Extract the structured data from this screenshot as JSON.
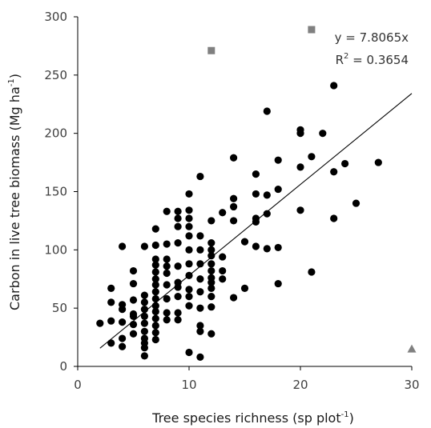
{
  "chart_data": {
    "type": "scatter",
    "xlabel": "Tree species richness (sp plot",
    "xlabel_sup": "-1",
    "xlabel_close": ")",
    "ylabel": "Carbon in live tree biomass (Mg ha",
    "ylabel_sup": "-1",
    "ylabel_close": ")",
    "xlim": [
      0,
      30
    ],
    "ylim": [
      0,
      300
    ],
    "xticks": [
      "0",
      "10",
      "20",
      "30"
    ],
    "yticks": [
      "0",
      "50",
      "100",
      "150",
      "200",
      "250",
      "300"
    ],
    "grid": false,
    "legend": "none",
    "annotations": {
      "equation": "y = 7.8065x",
      "r2_prefix": "R",
      "r2_sup": "2",
      "r2_value": " = 0.3654"
    },
    "colors": {
      "points": "#000000",
      "outliers": "#808080",
      "trendline": "#000000",
      "axis": "#000000"
    },
    "trendline": {
      "slope": 7.8065,
      "x_start": 2,
      "x_end": 30
    },
    "series": [
      {
        "marker": "circle",
        "points": [
          [
            2,
            37
          ],
          [
            3,
            20
          ],
          [
            3,
            39
          ],
          [
            3,
            55
          ],
          [
            3,
            67
          ],
          [
            4,
            17
          ],
          [
            4,
            24
          ],
          [
            4,
            38
          ],
          [
            4,
            49
          ],
          [
            4,
            53
          ],
          [
            4,
            103
          ],
          [
            5,
            28
          ],
          [
            5,
            36
          ],
          [
            5,
            43
          ],
          [
            5,
            45
          ],
          [
            5,
            57
          ],
          [
            5,
            71
          ],
          [
            5,
            82
          ],
          [
            6,
            9
          ],
          [
            6,
            16
          ],
          [
            6,
            20
          ],
          [
            6,
            24
          ],
          [
            6,
            30
          ],
          [
            6,
            37
          ],
          [
            6,
            43
          ],
          [
            6,
            49
          ],
          [
            6,
            55
          ],
          [
            6,
            61
          ],
          [
            6,
            103
          ],
          [
            7,
            23
          ],
          [
            7,
            29
          ],
          [
            7,
            35
          ],
          [
            7,
            41
          ],
          [
            7,
            47
          ],
          [
            7,
            52
          ],
          [
            7,
            58
          ],
          [
            7,
            64
          ],
          [
            7,
            70
          ],
          [
            7,
            75
          ],
          [
            7,
            81
          ],
          [
            7,
            87
          ],
          [
            7,
            92
          ],
          [
            7,
            104
          ],
          [
            7,
            118
          ],
          [
            8,
            40
          ],
          [
            8,
            46
          ],
          [
            8,
            58
          ],
          [
            8,
            70
          ],
          [
            8,
            80
          ],
          [
            8,
            86
          ],
          [
            8,
            92
          ],
          [
            8,
            105
          ],
          [
            8,
            133
          ],
          [
            9,
            40
          ],
          [
            9,
            46
          ],
          [
            9,
            60
          ],
          [
            9,
            68
          ],
          [
            9,
            72
          ],
          [
            9,
            86
          ],
          [
            9,
            106
          ],
          [
            9,
            120
          ],
          [
            9,
            127
          ],
          [
            9,
            133
          ],
          [
            10,
            12
          ],
          [
            10,
            52
          ],
          [
            10,
            60
          ],
          [
            10,
            66
          ],
          [
            10,
            78
          ],
          [
            10,
            88
          ],
          [
            10,
            100
          ],
          [
            10,
            112
          ],
          [
            10,
            120
          ],
          [
            10,
            127
          ],
          [
            10,
            134
          ],
          [
            10,
            148
          ],
          [
            11,
            8
          ],
          [
            11,
            30
          ],
          [
            11,
            35
          ],
          [
            11,
            50
          ],
          [
            11,
            64
          ],
          [
            11,
            75
          ],
          [
            11,
            88
          ],
          [
            11,
            100
          ],
          [
            11,
            112
          ],
          [
            11,
            163
          ],
          [
            12,
            28
          ],
          [
            12,
            51
          ],
          [
            12,
            60
          ],
          [
            12,
            67
          ],
          [
            12,
            72
          ],
          [
            12,
            76
          ],
          [
            12,
            82
          ],
          [
            12,
            88
          ],
          [
            12,
            95
          ],
          [
            12,
            100
          ],
          [
            12,
            106
          ],
          [
            12,
            125
          ],
          [
            13,
            75
          ],
          [
            13,
            82
          ],
          [
            13,
            94
          ],
          [
            13,
            132
          ],
          [
            14,
            59
          ],
          [
            14,
            125
          ],
          [
            14,
            137
          ],
          [
            14,
            144
          ],
          [
            14,
            179
          ],
          [
            15,
            67
          ],
          [
            15,
            107
          ],
          [
            16,
            103
          ],
          [
            16,
            124
          ],
          [
            16,
            127
          ],
          [
            16,
            148
          ],
          [
            16,
            165
          ],
          [
            17,
            101
          ],
          [
            17,
            131
          ],
          [
            17,
            147
          ],
          [
            17,
            219
          ],
          [
            18,
            71
          ],
          [
            18,
            102
          ],
          [
            18,
            152
          ],
          [
            18,
            177
          ],
          [
            20,
            134
          ],
          [
            20,
            171
          ],
          [
            20,
            200
          ],
          [
            20,
            203
          ],
          [
            21,
            81
          ],
          [
            21,
            180
          ],
          [
            22,
            200
          ],
          [
            23,
            127
          ],
          [
            23,
            167
          ],
          [
            23,
            241
          ],
          [
            24,
            174
          ],
          [
            25,
            140
          ],
          [
            27,
            175
          ]
        ]
      },
      {
        "marker": "square",
        "points": [
          [
            12,
            271
          ],
          [
            21,
            289
          ]
        ]
      },
      {
        "marker": "triangle",
        "points": [
          [
            30,
            15
          ]
        ]
      }
    ]
  }
}
